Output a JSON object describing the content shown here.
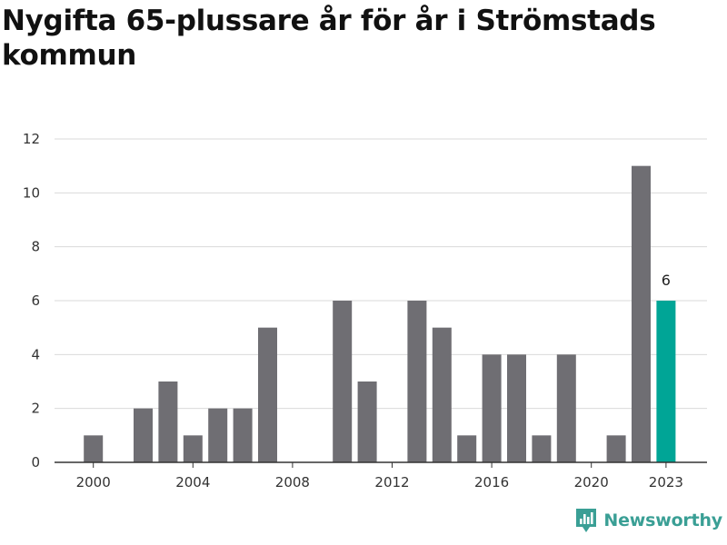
{
  "title": "Nygifta 65-plussare år för år i Strömstads kommun",
  "brand": {
    "name": "Newsworthy",
    "logo_icon": "bar-chart-pin-icon",
    "color": "#3a9f95"
  },
  "colors": {
    "bar": "#6f6e73",
    "highlight": "#00a596",
    "grid": "#d9d9d9",
    "axis": "#333333"
  },
  "chart_data": {
    "type": "bar",
    "title": "Nygifta 65-plussare år för år i Strömstads kommun",
    "xlabel": "",
    "ylabel": "",
    "categories": [
      "2000",
      "2001",
      "2002",
      "2003",
      "2004",
      "2005",
      "2006",
      "2007",
      "2008",
      "2009",
      "2010",
      "2011",
      "2012",
      "2013",
      "2014",
      "2015",
      "2016",
      "2017",
      "2018",
      "2019",
      "2020",
      "2021",
      "2022",
      "2023"
    ],
    "values": [
      1,
      0,
      2,
      3,
      1,
      2,
      2,
      5,
      0,
      0,
      6,
      3,
      0,
      6,
      5,
      1,
      4,
      4,
      1,
      4,
      0,
      1,
      11,
      6
    ],
    "highlight": "2023",
    "highlight_label": "6",
    "ylim": [
      0,
      12
    ],
    "yticks": [
      0,
      2,
      4,
      6,
      8,
      10,
      12
    ],
    "xtick_labels": [
      "2000",
      "2004",
      "2008",
      "2012",
      "2016",
      "2020",
      "2023"
    ],
    "grid": true,
    "legend": "none"
  }
}
